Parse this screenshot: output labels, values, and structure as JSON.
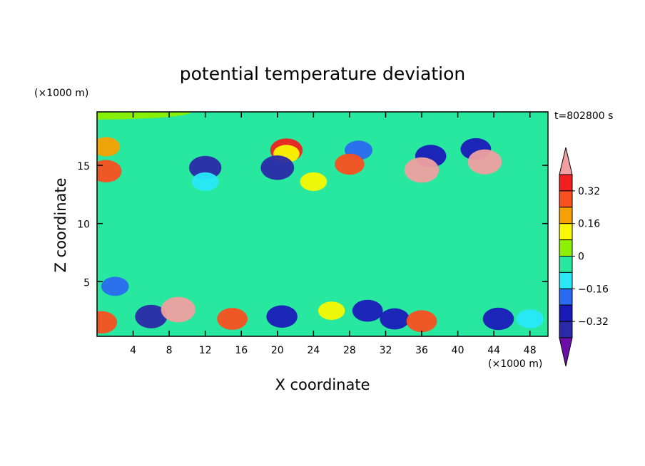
{
  "chart_data": {
    "type": "heatmap",
    "title": "potential temperature deviation",
    "xlabel": "X coordinate",
    "ylabel": "Z coordinate",
    "x_unit_label": "(×1000 m)",
    "y_unit_label": "(×1000 m)",
    "time_label": "t=802800 s",
    "xlim": [
      0,
      50
    ],
    "ylim": [
      0.3,
      19.6
    ],
    "x_ticks": [
      "4",
      "8",
      "12",
      "16",
      "20",
      "24",
      "28",
      "32",
      "36",
      "40",
      "44",
      "48"
    ],
    "y_ticks": [
      "5",
      "10",
      "15"
    ],
    "colorbar": {
      "labels": [
        "0.32",
        "0.16",
        "0",
        "−0.16",
        "−0.32"
      ],
      "levels": [
        -0.4,
        -0.32,
        -0.24,
        -0.16,
        -0.08,
        0,
        0.08,
        0.16,
        0.24,
        0.32,
        0.4
      ],
      "colors": [
        "#6b0fa8",
        "#2a2aa8",
        "#1a1ab8",
        "#2a6af0",
        "#28e8f8",
        "#28e8a0",
        "#8cf000",
        "#f8f800",
        "#f8a000",
        "#f85020",
        "#f02020",
        "#f0a0a0"
      ],
      "extend": "both"
    },
    "features": [
      {
        "x": 0,
        "z": 19.6,
        "value": 0.02
      },
      {
        "x": 1,
        "z": 16.6,
        "value": 0.18
      },
      {
        "x": 21,
        "z": 16.3,
        "value": 0.35
      },
      {
        "x": 21,
        "z": 16.0,
        "value": 0.12
      },
      {
        "x": 29,
        "z": 16.3,
        "value": -0.18
      },
      {
        "x": 37,
        "z": 15.8,
        "value": -0.3
      },
      {
        "x": 42,
        "z": 16.4,
        "value": -0.28
      },
      {
        "x": 12,
        "z": 14.8,
        "value": -0.35
      },
      {
        "x": 20,
        "z": 14.8,
        "value": -0.38
      },
      {
        "x": 1,
        "z": 14.5,
        "value": 0.3
      },
      {
        "x": 28,
        "z": 15.1,
        "value": 0.25
      },
      {
        "x": 36,
        "z": 14.6,
        "value": 0.42
      },
      {
        "x": 43,
        "z": 15.3,
        "value": 0.4
      },
      {
        "x": 12,
        "z": 13.6,
        "value": -0.15
      },
      {
        "x": 24,
        "z": 13.6,
        "value": 0.15
      },
      {
        "x": 15,
        "z": 8.5,
        "value": -0.06
      },
      {
        "x": 6,
        "z": 7.5,
        "value": -0.06
      },
      {
        "x": 2,
        "z": 4.6,
        "value": -0.17
      },
      {
        "x": 20,
        "z": 4.4,
        "value": -0.08
      },
      {
        "x": 6,
        "z": 2.0,
        "value": -0.34
      },
      {
        "x": 9,
        "z": 2.6,
        "value": 0.42
      },
      {
        "x": 15,
        "z": 1.8,
        "value": 0.28
      },
      {
        "x": 20.5,
        "z": 2.0,
        "value": -0.3
      },
      {
        "x": 26,
        "z": 2.5,
        "value": 0.14
      },
      {
        "x": 30,
        "z": 2.5,
        "value": -0.28
      },
      {
        "x": 33,
        "z": 1.8,
        "value": -0.25
      },
      {
        "x": 36,
        "z": 1.6,
        "value": 0.28
      },
      {
        "x": 44.5,
        "z": 1.8,
        "value": -0.3
      },
      {
        "x": 48,
        "z": 1.8,
        "value": -0.16
      },
      {
        "x": 0.5,
        "z": 1.5,
        "value": 0.3
      }
    ]
  }
}
